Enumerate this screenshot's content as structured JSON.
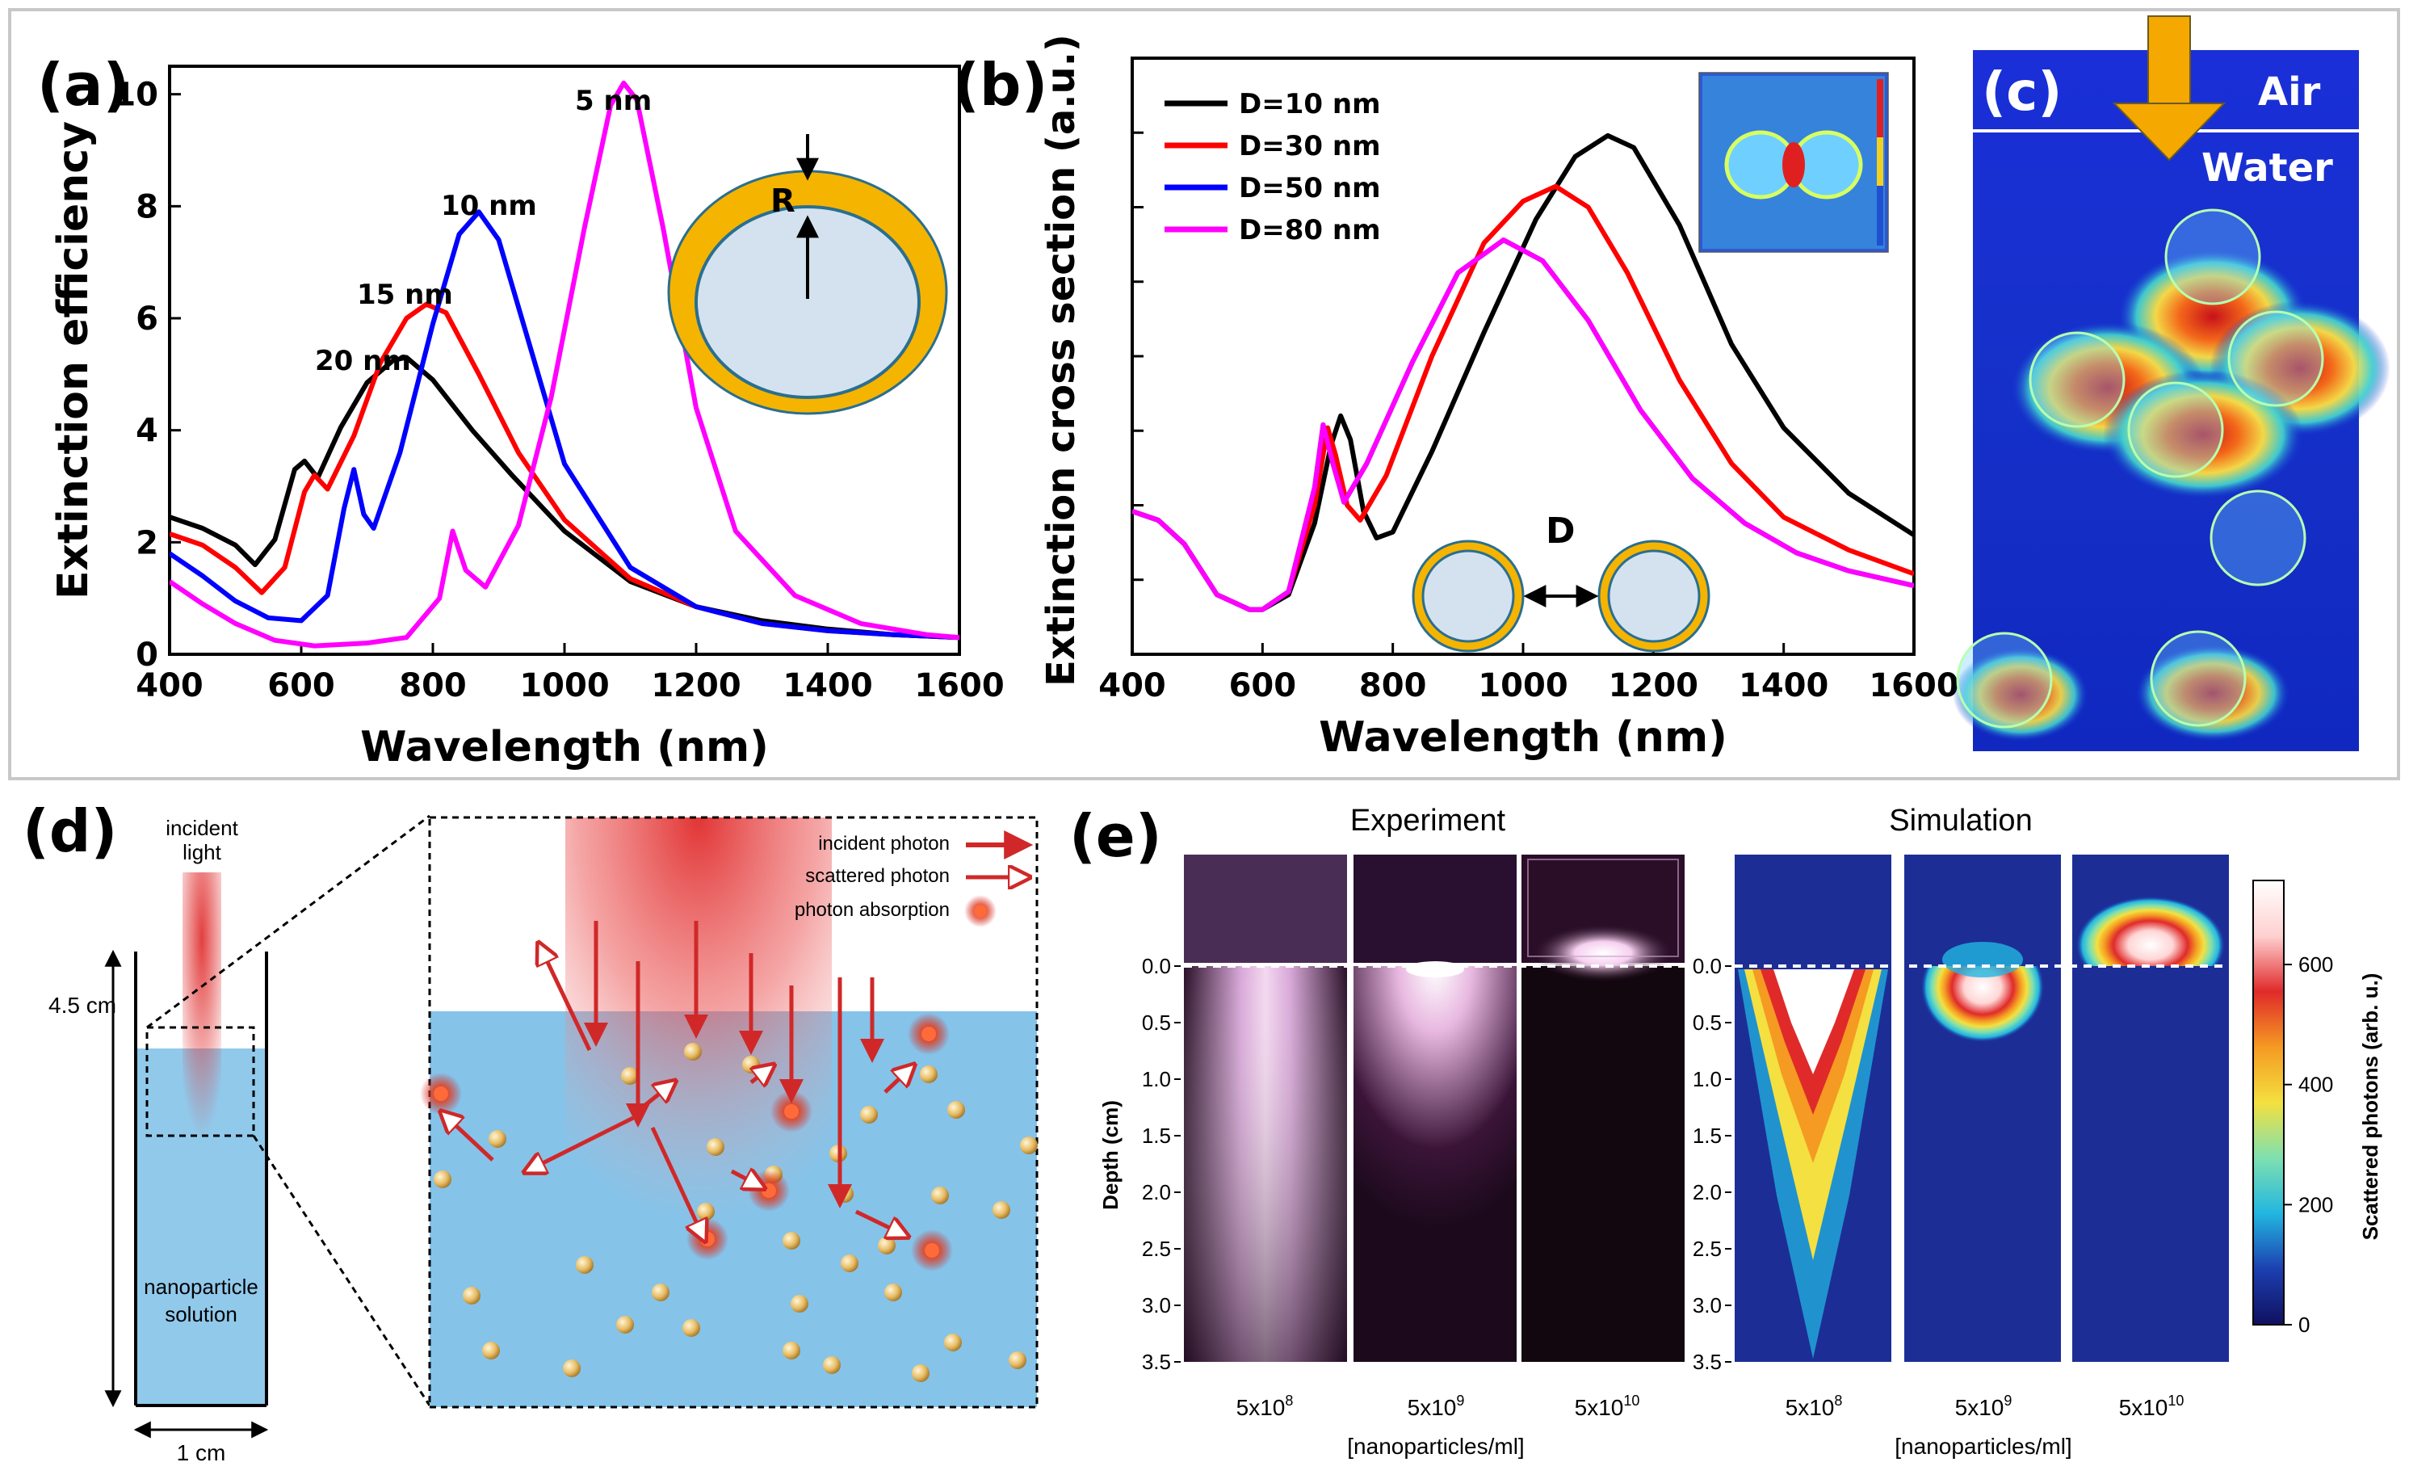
{
  "panels": {
    "a": {
      "tag": "(a)",
      "ann": [
        "5 nm",
        "10 nm",
        "15 nm",
        "20 nm"
      ],
      "inset_label": "R"
    },
    "b": {
      "tag": "(b)",
      "inset_label": "D"
    },
    "c": {
      "tag": "(c)",
      "air": "Air",
      "water": "Water"
    },
    "d": {
      "tag": "(d)",
      "incident_light": [
        "incident",
        "light"
      ],
      "height_label": "4.5 cm",
      "width_label": "1 cm",
      "solution_label": [
        "nanoparticle",
        "solution"
      ],
      "legend": [
        "incident photon",
        "scattered photon",
        "photon absorption"
      ]
    },
    "e": {
      "tag": "(e)",
      "experiment_title": "Experiment",
      "simulation_title": "Simulation",
      "depth_label": "Depth (cm)",
      "depth_ticks": [
        "0.0",
        "0.5",
        "1.0",
        "1.5",
        "2.0",
        "2.5",
        "3.0",
        "3.5"
      ],
      "concentrations": [
        {
          "base": "5x10",
          "exp": "8"
        },
        {
          "base": "5x10",
          "exp": "9"
        },
        {
          "base": "5x10",
          "exp": "10"
        }
      ],
      "x_unit": "[nanoparticles/ml]",
      "colorbar_label": "Scattered photons (arb. u.)",
      "colorbar_ticks": [
        "0",
        "200",
        "400",
        "600"
      ],
      "colorbar_colors": [
        "#101060",
        "#1c3fb0",
        "#22b6e0",
        "#7ee0b0",
        "#f4e040",
        "#f59a22",
        "#e02a2a",
        "#ffd0d0",
        "#ffffff"
      ]
    }
  },
  "chart_data": [
    {
      "type": "line",
      "title": "(a)",
      "xlabel": "Wavelength (nm)",
      "ylabel": "Extinction efficiency",
      "xlim": [
        400,
        1600
      ],
      "ylim": [
        0,
        10.5
      ],
      "xticks": [
        400,
        600,
        800,
        1000,
        1200,
        1400,
        1600
      ],
      "yticks": [
        0,
        2,
        4,
        6,
        8,
        10
      ],
      "series": [
        {
          "name": "20 nm",
          "color": "#000000",
          "points": [
            [
              400,
              2.45
            ],
            [
              450,
              2.25
            ],
            [
              500,
              1.95
            ],
            [
              530,
              1.6
            ],
            [
              560,
              2.05
            ],
            [
              590,
              3.3
            ],
            [
              605,
              3.45
            ],
            [
              625,
              3.15
            ],
            [
              660,
              4.05
            ],
            [
              700,
              4.85
            ],
            [
              740,
              5.25
            ],
            [
              760,
              5.3
            ],
            [
              800,
              4.9
            ],
            [
              860,
              4.0
            ],
            [
              920,
              3.2
            ],
            [
              1000,
              2.2
            ],
            [
              1100,
              1.3
            ],
            [
              1200,
              0.85
            ],
            [
              1300,
              0.6
            ],
            [
              1400,
              0.45
            ],
            [
              1500,
              0.35
            ],
            [
              1600,
              0.3
            ]
          ]
        },
        {
          "name": "15 nm",
          "color": "#ff0000",
          "points": [
            [
              400,
              2.15
            ],
            [
              450,
              1.95
            ],
            [
              500,
              1.55
            ],
            [
              540,
              1.1
            ],
            [
              575,
              1.55
            ],
            [
              605,
              2.9
            ],
            [
              620,
              3.2
            ],
            [
              640,
              2.95
            ],
            [
              680,
              3.9
            ],
            [
              720,
              5.2
            ],
            [
              760,
              6.0
            ],
            [
              790,
              6.25
            ],
            [
              820,
              6.1
            ],
            [
              870,
              5.0
            ],
            [
              930,
              3.6
            ],
            [
              1000,
              2.4
            ],
            [
              1100,
              1.35
            ],
            [
              1200,
              0.85
            ],
            [
              1300,
              0.55
            ],
            [
              1400,
              0.42
            ],
            [
              1500,
              0.35
            ],
            [
              1600,
              0.3
            ]
          ]
        },
        {
          "name": "10 nm",
          "color": "#0000ff",
          "points": [
            [
              400,
              1.8
            ],
            [
              450,
              1.4
            ],
            [
              500,
              0.95
            ],
            [
              550,
              0.65
            ],
            [
              600,
              0.6
            ],
            [
              640,
              1.05
            ],
            [
              665,
              2.6
            ],
            [
              680,
              3.3
            ],
            [
              695,
              2.5
            ],
            [
              710,
              2.25
            ],
            [
              750,
              3.6
            ],
            [
              800,
              5.9
            ],
            [
              840,
              7.5
            ],
            [
              870,
              7.9
            ],
            [
              900,
              7.4
            ],
            [
              950,
              5.4
            ],
            [
              1000,
              3.4
            ],
            [
              1100,
              1.55
            ],
            [
              1200,
              0.85
            ],
            [
              1300,
              0.55
            ],
            [
              1400,
              0.42
            ],
            [
              1500,
              0.35
            ],
            [
              1600,
              0.3
            ]
          ]
        },
        {
          "name": "5 nm",
          "color": "#ff00ff",
          "points": [
            [
              400,
              1.3
            ],
            [
              450,
              0.9
            ],
            [
              500,
              0.55
            ],
            [
              560,
              0.25
            ],
            [
              620,
              0.15
            ],
            [
              700,
              0.2
            ],
            [
              760,
              0.3
            ],
            [
              810,
              1.0
            ],
            [
              830,
              2.2
            ],
            [
              850,
              1.5
            ],
            [
              880,
              1.2
            ],
            [
              930,
              2.3
            ],
            [
              980,
              4.6
            ],
            [
              1030,
              7.6
            ],
            [
              1070,
              9.8
            ],
            [
              1090,
              10.2
            ],
            [
              1110,
              9.9
            ],
            [
              1150,
              7.6
            ],
            [
              1200,
              4.4
            ],
            [
              1260,
              2.2
            ],
            [
              1350,
              1.05
            ],
            [
              1450,
              0.55
            ],
            [
              1550,
              0.35
            ],
            [
              1600,
              0.3
            ]
          ]
        }
      ]
    },
    {
      "type": "line",
      "title": "(b)",
      "xlabel": "Wavelength (nm)",
      "ylabel": "Extinction cross section (a.u.)",
      "xlim": [
        400,
        1600
      ],
      "ylim": [
        0,
        10
      ],
      "xticks": [
        400,
        600,
        800,
        1000,
        1200,
        1400,
        1600
      ],
      "legend": "top-left",
      "series": [
        {
          "name": "D=10 nm",
          "color": "#000000",
          "points": [
            [
              400,
              2.4
            ],
            [
              440,
              2.25
            ],
            [
              480,
              1.85
            ],
            [
              530,
              1.0
            ],
            [
              580,
              0.75
            ],
            [
              600,
              0.75
            ],
            [
              640,
              1.0
            ],
            [
              680,
              2.2
            ],
            [
              705,
              3.5
            ],
            [
              720,
              4.0
            ],
            [
              735,
              3.6
            ],
            [
              755,
              2.4
            ],
            [
              775,
              1.95
            ],
            [
              800,
              2.05
            ],
            [
              860,
              3.4
            ],
            [
              940,
              5.4
            ],
            [
              1020,
              7.3
            ],
            [
              1080,
              8.35
            ],
            [
              1130,
              8.7
            ],
            [
              1170,
              8.5
            ],
            [
              1240,
              7.2
            ],
            [
              1320,
              5.2
            ],
            [
              1400,
              3.8
            ],
            [
              1500,
              2.7
            ],
            [
              1600,
              2.0
            ]
          ]
        },
        {
          "name": "D=30 nm",
          "color": "#ff0000",
          "points": [
            [
              400,
              2.4
            ],
            [
              440,
              2.25
            ],
            [
              480,
              1.85
            ],
            [
              530,
              1.0
            ],
            [
              580,
              0.75
            ],
            [
              600,
              0.75
            ],
            [
              640,
              1.05
            ],
            [
              680,
              2.5
            ],
            [
              700,
              3.8
            ],
            [
              712,
              3.35
            ],
            [
              730,
              2.5
            ],
            [
              750,
              2.25
            ],
            [
              790,
              3.0
            ],
            [
              860,
              5.0
            ],
            [
              940,
              6.9
            ],
            [
              1000,
              7.6
            ],
            [
              1050,
              7.85
            ],
            [
              1100,
              7.5
            ],
            [
              1160,
              6.4
            ],
            [
              1240,
              4.6
            ],
            [
              1320,
              3.2
            ],
            [
              1400,
              2.3
            ],
            [
              1500,
              1.75
            ],
            [
              1600,
              1.35
            ]
          ]
        },
        {
          "name": "D=50 nm",
          "color": "#0000ff",
          "points": [
            [
              400,
              2.4
            ],
            [
              440,
              2.25
            ],
            [
              480,
              1.85
            ],
            [
              530,
              1.0
            ],
            [
              580,
              0.75
            ],
            [
              600,
              0.75
            ],
            [
              640,
              1.05
            ],
            [
              680,
              2.8
            ],
            [
              693,
              3.85
            ],
            [
              708,
              3.2
            ],
            [
              725,
              2.55
            ],
            [
              760,
              3.2
            ],
            [
              830,
              4.9
            ],
            [
              900,
              6.4
            ],
            [
              970,
              6.95
            ],
            [
              1030,
              6.6
            ],
            [
              1100,
              5.6
            ],
            [
              1180,
              4.1
            ],
            [
              1260,
              2.95
            ],
            [
              1340,
              2.2
            ],
            [
              1420,
              1.7
            ],
            [
              1500,
              1.4
            ],
            [
              1600,
              1.15
            ]
          ]
        },
        {
          "name": "D=80 nm",
          "color": "#ff00ff",
          "points": [
            [
              400,
              2.4
            ],
            [
              440,
              2.25
            ],
            [
              480,
              1.85
            ],
            [
              530,
              1.0
            ],
            [
              580,
              0.75
            ],
            [
              600,
              0.75
            ],
            [
              640,
              1.05
            ],
            [
              680,
              2.8
            ],
            [
              693,
              3.85
            ],
            [
              708,
              3.2
            ],
            [
              725,
              2.55
            ],
            [
              760,
              3.2
            ],
            [
              830,
              4.9
            ],
            [
              900,
              6.4
            ],
            [
              970,
              6.95
            ],
            [
              1030,
              6.6
            ],
            [
              1100,
              5.6
            ],
            [
              1180,
              4.1
            ],
            [
              1260,
              2.95
            ],
            [
              1340,
              2.2
            ],
            [
              1420,
              1.7
            ],
            [
              1500,
              1.4
            ],
            [
              1600,
              1.15
            ]
          ]
        }
      ]
    }
  ]
}
